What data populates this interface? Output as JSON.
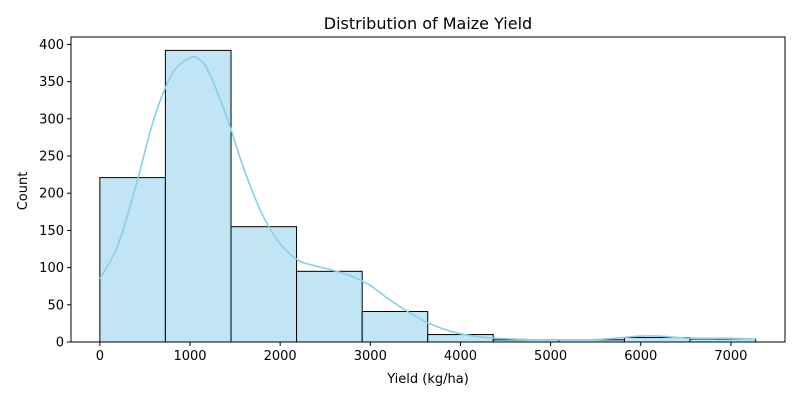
{
  "chart_data": {
    "type": "histogram",
    "title": "Distribution of Maize Yield",
    "xlabel": "Yield (kg/ha)",
    "ylabel": "Count",
    "xlim": [
      -320,
      7600
    ],
    "ylim": [
      0,
      410
    ],
    "xticks": [
      0,
      1000,
      2000,
      3000,
      4000,
      5000,
      6000,
      7000
    ],
    "yticks": [
      0,
      50,
      100,
      150,
      200,
      250,
      300,
      350,
      400
    ],
    "bin_edges": [
      0,
      727,
      1455,
      2182,
      2910,
      3637,
      4364,
      5092,
      5819,
      6546,
      7274
    ],
    "counts": [
      221,
      392,
      155,
      95,
      41,
      10,
      3,
      3,
      6,
      4
    ],
    "kde": {
      "x": [
        0,
        200,
        400,
        600,
        800,
        1000,
        1100,
        1200,
        1400,
        1600,
        1800,
        2000,
        2200,
        2400,
        2600,
        2800,
        3000,
        3200,
        3400,
        3600,
        3800,
        4000,
        4200,
        4400,
        4600,
        4800,
        5000,
        5200,
        5400,
        5600,
        5800,
        6000,
        6200,
        6400,
        6600,
        6800,
        7000,
        7274
      ],
      "y": [
        85,
        130,
        210,
        300,
        360,
        382,
        380,
        365,
        305,
        232,
        172,
        132,
        110,
        102,
        96,
        88,
        76,
        58,
        42,
        28,
        18,
        11,
        7,
        5,
        4,
        3,
        3,
        3,
        3,
        4,
        6,
        8,
        8,
        6,
        5,
        5,
        5,
        4
      ]
    },
    "grid": false,
    "colors": {
      "bar_fill": "#c1e5f5",
      "bar_edge": "#000000",
      "kde_line": "#87ceeb"
    }
  }
}
